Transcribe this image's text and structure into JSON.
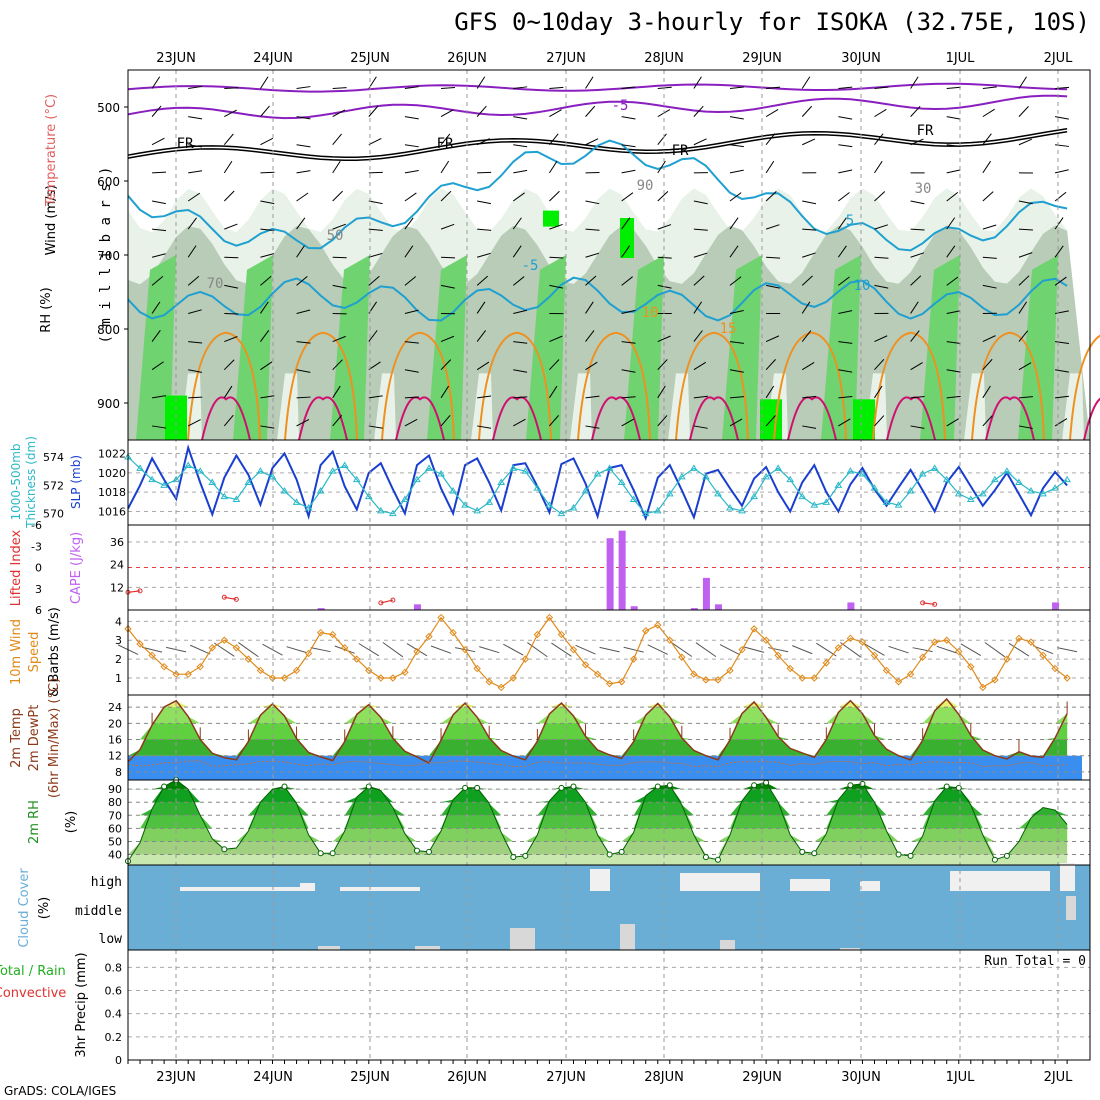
{
  "title": "GFS 0~10day 3-hourly for ISOKA (32.75E, 10S)",
  "credit": "GrADS: COLA/IGES",
  "dates": [
    "23JUN",
    "24JUN",
    "25JUN",
    "26JUN",
    "27JUN",
    "28JUN",
    "29JUN",
    "30JUN",
    "1JUL",
    "2JUL"
  ],
  "colors": {
    "rh_light": "#e8f2e8",
    "rh_mid": "#b8ccb8",
    "rh_green": "#6fd36f",
    "rh_bright": "#00ee00",
    "wind_purple": "#8a1fbf",
    "temp_cyan": "#1fa0d0",
    "temp_orange": "#f09020",
    "temp_magenta": "#d01070",
    "slp": "#1a3fcf",
    "thickness": "#2ab8c8",
    "cape": "#c060f0",
    "li": "#e03030",
    "wind10": "#e08a1a",
    "cloud": "#6aaed6",
    "cloud_fill": "#f0f0f0"
  },
  "chart_data": [
    {
      "panel": "upper-air",
      "type": "contour",
      "ylabel_parts": [
        "Wind (m/s)",
        "Temperature (°C)",
        "RH (%)"
      ],
      "ylabel2": "( m i l l i b a r s )",
      "y_ticks": [
        500,
        600,
        700,
        800,
        900
      ],
      "ylim": [
        450,
        950
      ],
      "contour_labels": [
        "-5",
        "FR",
        "FR",
        "FR",
        "FR",
        "5",
        "-5",
        "10",
        "15",
        "10",
        "30",
        "50",
        "70",
        "90"
      ]
    },
    {
      "panel": "slp-thickness",
      "type": "line",
      "ylabel": [
        "1000-500mb",
        "Thickness (dm)",
        "SLP (mb)"
      ],
      "left_ticks": [
        570,
        572,
        574
      ],
      "right_ticks": [
        1016,
        1018,
        1020,
        1022
      ],
      "slp": [
        1016.3,
        1018.7,
        1021.5,
        1019.3,
        1017.3,
        1022.6,
        1019.0,
        1015.7,
        1019.5,
        1021.8,
        1019.8,
        1016.7,
        1020.5,
        1022.0,
        1019.3,
        1015.5,
        1020.8,
        1022.2,
        1018.6,
        1016.2,
        1020.0,
        1021.0,
        1018.3,
        1015.8,
        1020.8,
        1021.8,
        1018.4,
        1015.8,
        1020.8,
        1021.5,
        1019.0,
        1016.1,
        1020.8,
        1021.0,
        1018.6,
        1015.9,
        1020.9,
        1021.5,
        1018.9,
        1015.5,
        1020.5,
        1020.8,
        1018.2,
        1015.3,
        1019.5,
        1020.8,
        1018.2,
        1015.4,
        1019.9,
        1020.3,
        1018.4,
        1016.6,
        1019.4,
        1020.6,
        1018.0,
        1016.0,
        1019.0,
        1020.8,
        1018.0,
        1016.0,
        1018.8,
        1020.5,
        1018.3,
        1016.6,
        1018.5,
        1020.3,
        1018.2,
        1016.0,
        1019.0,
        1020.6,
        1018.6,
        1016.6,
        1018.2,
        1020.0,
        1017.8,
        1015.6,
        1018.4,
        1020.1,
        1018.7
      ],
      "thickness": [
        574.0,
        573.2,
        572.4,
        572.0,
        572.4,
        573.4,
        573.0,
        572.2,
        571.2,
        571.0,
        572.2,
        573.0,
        572.6,
        571.6,
        570.8,
        570.4,
        571.6,
        573.0,
        573.4,
        572.4,
        571.2,
        570.2,
        570.0,
        571.0,
        572.4,
        573.2,
        572.8,
        571.6,
        570.6,
        570.2,
        570.8,
        572.2,
        573.2,
        573.0,
        571.8,
        570.6,
        570.0,
        570.4,
        571.6,
        572.8,
        573.2,
        572.2,
        571.0,
        570.0,
        570.2,
        571.4,
        572.6,
        573.2,
        572.6,
        571.4,
        570.4,
        570.2,
        571.2,
        572.6,
        573.2,
        572.4,
        571.2,
        570.6,
        570.8,
        572.0,
        573.0,
        572.8,
        571.8,
        570.8,
        570.6,
        571.6,
        572.8,
        573.2,
        572.4,
        571.4,
        571.0,
        571.4,
        572.4,
        573.0,
        572.2,
        571.6,
        571.4,
        571.8,
        572.4
      ]
    },
    {
      "panel": "cape-li",
      "type": "bar",
      "ylabel": [
        "Lifted Index",
        "CAPE (J/kg)"
      ],
      "li_ticks": [
        -6,
        -3,
        0,
        3,
        6
      ],
      "cape_ticks": [
        12,
        24,
        36
      ],
      "cape": [
        0,
        0,
        0,
        0,
        0,
        0,
        0,
        0,
        0,
        0,
        0,
        0,
        0,
        0,
        0,
        0,
        1,
        0,
        0,
        0,
        0,
        0,
        0,
        0,
        3,
        0,
        0,
        0,
        0,
        0,
        0,
        0,
        0,
        0,
        0,
        0,
        0,
        0,
        0,
        0,
        38,
        42,
        2,
        0,
        0,
        0,
        0,
        1,
        17,
        3,
        0,
        0,
        0,
        0,
        0,
        0,
        0,
        0,
        0,
        0,
        4,
        0,
        0,
        0,
        0,
        0,
        0,
        0,
        0,
        0,
        0,
        0,
        0,
        0,
        0,
        0,
        0,
        4,
        0
      ],
      "li": [
        3.5,
        3.3,
        null,
        null,
        null,
        null,
        null,
        null,
        4.2,
        4.5,
        null,
        null,
        null,
        null,
        null,
        null,
        null,
        null,
        null,
        null,
        null,
        5.0,
        4.6,
        null,
        null,
        null,
        null,
        null,
        null,
        null,
        null,
        null,
        null,
        null,
        null,
        null,
        null,
        null,
        null,
        null,
        null,
        null,
        null,
        null,
        null,
        null,
        null,
        null,
        null,
        null,
        null,
        null,
        null,
        null,
        null,
        null,
        null,
        null,
        null,
        null,
        null,
        null,
        null,
        null,
        null,
        null,
        5.0,
        5.2,
        null,
        null,
        null,
        null,
        null,
        null,
        null,
        null,
        null,
        null,
        null
      ]
    },
    {
      "panel": "wind10",
      "type": "line",
      "ylabel": [
        "10m Wind",
        "Speed",
        "& Barbs (m/s)"
      ],
      "y_ticks": [
        1,
        2,
        3,
        4
      ],
      "speed": [
        3.6,
        2.8,
        2.2,
        1.6,
        1.2,
        1.2,
        1.6,
        2.6,
        3.0,
        2.6,
        2.0,
        1.4,
        1.0,
        1.0,
        1.4,
        2.3,
        3.4,
        3.3,
        2.6,
        2.0,
        1.4,
        1.0,
        1.0,
        1.3,
        2.4,
        3.2,
        4.2,
        3.4,
        2.5,
        1.5,
        0.8,
        0.5,
        1.0,
        2.0,
        3.3,
        4.2,
        3.3,
        2.5,
        1.7,
        1.2,
        0.7,
        0.8,
        2.0,
        3.5,
        3.8,
        3.0,
        2.1,
        1.2,
        0.9,
        0.9,
        1.4,
        2.5,
        3.6,
        3.0,
        2.2,
        1.5,
        1.0,
        1.0,
        1.8,
        2.6,
        3.1,
        2.9,
        2.2,
        1.4,
        0.8,
        1.2,
        2.1,
        2.9,
        3.0,
        2.4,
        1.6,
        0.5,
        0.9,
        2.0,
        3.1,
        2.9,
        2.2,
        1.5,
        1.0
      ]
    },
    {
      "panel": "temp2m",
      "type": "area",
      "ylabel": [
        "2m Temp",
        "2m DewPt",
        "(6hr Min/Max) (°C)"
      ],
      "y_ticks": [
        8,
        12,
        16,
        20,
        24
      ],
      "temp": [
        10.5,
        13.5,
        19.6,
        24.0,
        25.6,
        21.7,
        16.0,
        12.6,
        11.5,
        11.0,
        15.5,
        22.0,
        24.8,
        21.8,
        16.2,
        12.8,
        11.7,
        10.8,
        15.5,
        22.2,
        24.6,
        21.5,
        16.3,
        13.1,
        11.7,
        10.2,
        15.8,
        22.1,
        25.0,
        21.5,
        16.4,
        13.3,
        11.9,
        11.0,
        15.6,
        22.3,
        25.0,
        21.8,
        16.8,
        13.4,
        12.2,
        11.3,
        15.5,
        22.0,
        24.9,
        21.6,
        16.4,
        13.3,
        12.0,
        11.0,
        15.9,
        22.4,
        25.3,
        21.5,
        16.7,
        13.8,
        12.7,
        11.6,
        16.0,
        22.7,
        25.6,
        22.4,
        17.0,
        13.6,
        12.0,
        11.0,
        15.8,
        23.1,
        26.0,
        22.2,
        17.0,
        13.4,
        12.0,
        11.2,
        13.0,
        11.9,
        11.6,
        16.4,
        22.4
      ],
      "dewpoint": [
        9.8,
        9.5,
        9.7,
        10.3,
        10.2,
        10.7,
        10.7,
        9.4,
        9.5,
        9.8,
        10.0,
        10.6,
        10.5,
        10.5,
        9.9,
        9.5,
        10.0,
        9.7,
        10.4,
        10.6,
        10.4,
        10.1,
        9.8,
        9.5,
        9.7,
        10.3,
        10.2,
        10.7,
        10.7,
        10.4,
        10.0,
        9.8,
        9.3,
        9.4,
        10.4,
        10.5,
        10.2,
        10.2,
        10.2,
        9.9,
        9.6,
        9.6,
        10.3,
        10.5,
        10.5,
        10.2,
        10.1,
        9.3,
        9.5,
        9.3,
        10.3,
        10.5,
        10.5,
        10.5,
        10.4,
        9.6,
        10.1,
        9.8,
        10.5,
        10.6,
        10.5,
        10.0,
        10.3,
        9.5,
        9.8,
        9.7,
        10.3,
        10.5,
        10.3,
        10.3,
        10.3,
        9.3,
        9.5,
        9.5,
        10.2,
        10.3,
        9.5,
        9.6,
        9.8
      ]
    },
    {
      "panel": "rh2m",
      "type": "area",
      "ylabel": [
        "2m RH",
        "(%)"
      ],
      "y_ticks": [
        40,
        50,
        60,
        70,
        80,
        90
      ],
      "rh": [
        35,
        49,
        75,
        92,
        97,
        90,
        70,
        52,
        44,
        45,
        58,
        80,
        90,
        92,
        79,
        55,
        41,
        41,
        58,
        84,
        92,
        89,
        76,
        56,
        43,
        42,
        58,
        82,
        91,
        91,
        79,
        57,
        38,
        39,
        55,
        81,
        91,
        92,
        80,
        55,
        40,
        42,
        57,
        85,
        92,
        93,
        78,
        55,
        38,
        36,
        55,
        81,
        93,
        95,
        80,
        55,
        42,
        41,
        56,
        82,
        93,
        94,
        80,
        58,
        40,
        39,
        54,
        81,
        92,
        91,
        78,
        55,
        36,
        39,
        50,
        68,
        76,
        74,
        63
      ]
    },
    {
      "panel": "cloud",
      "type": "heatmap",
      "ylabel": [
        "Cloud Cover",
        "(%)"
      ],
      "levels": [
        "high",
        "middle",
        "low"
      ]
    },
    {
      "panel": "precip",
      "type": "bar",
      "ylabel": [
        "3hr Precip (mm)"
      ],
      "ylabel_left": [
        "Total / Rain",
        "Convective"
      ],
      "y_ticks": [
        0,
        0.2,
        0.4,
        0.6,
        0.8
      ],
      "ylim": [
        0,
        0.95
      ],
      "run_total_label": "Run Total = 0",
      "values": []
    }
  ]
}
